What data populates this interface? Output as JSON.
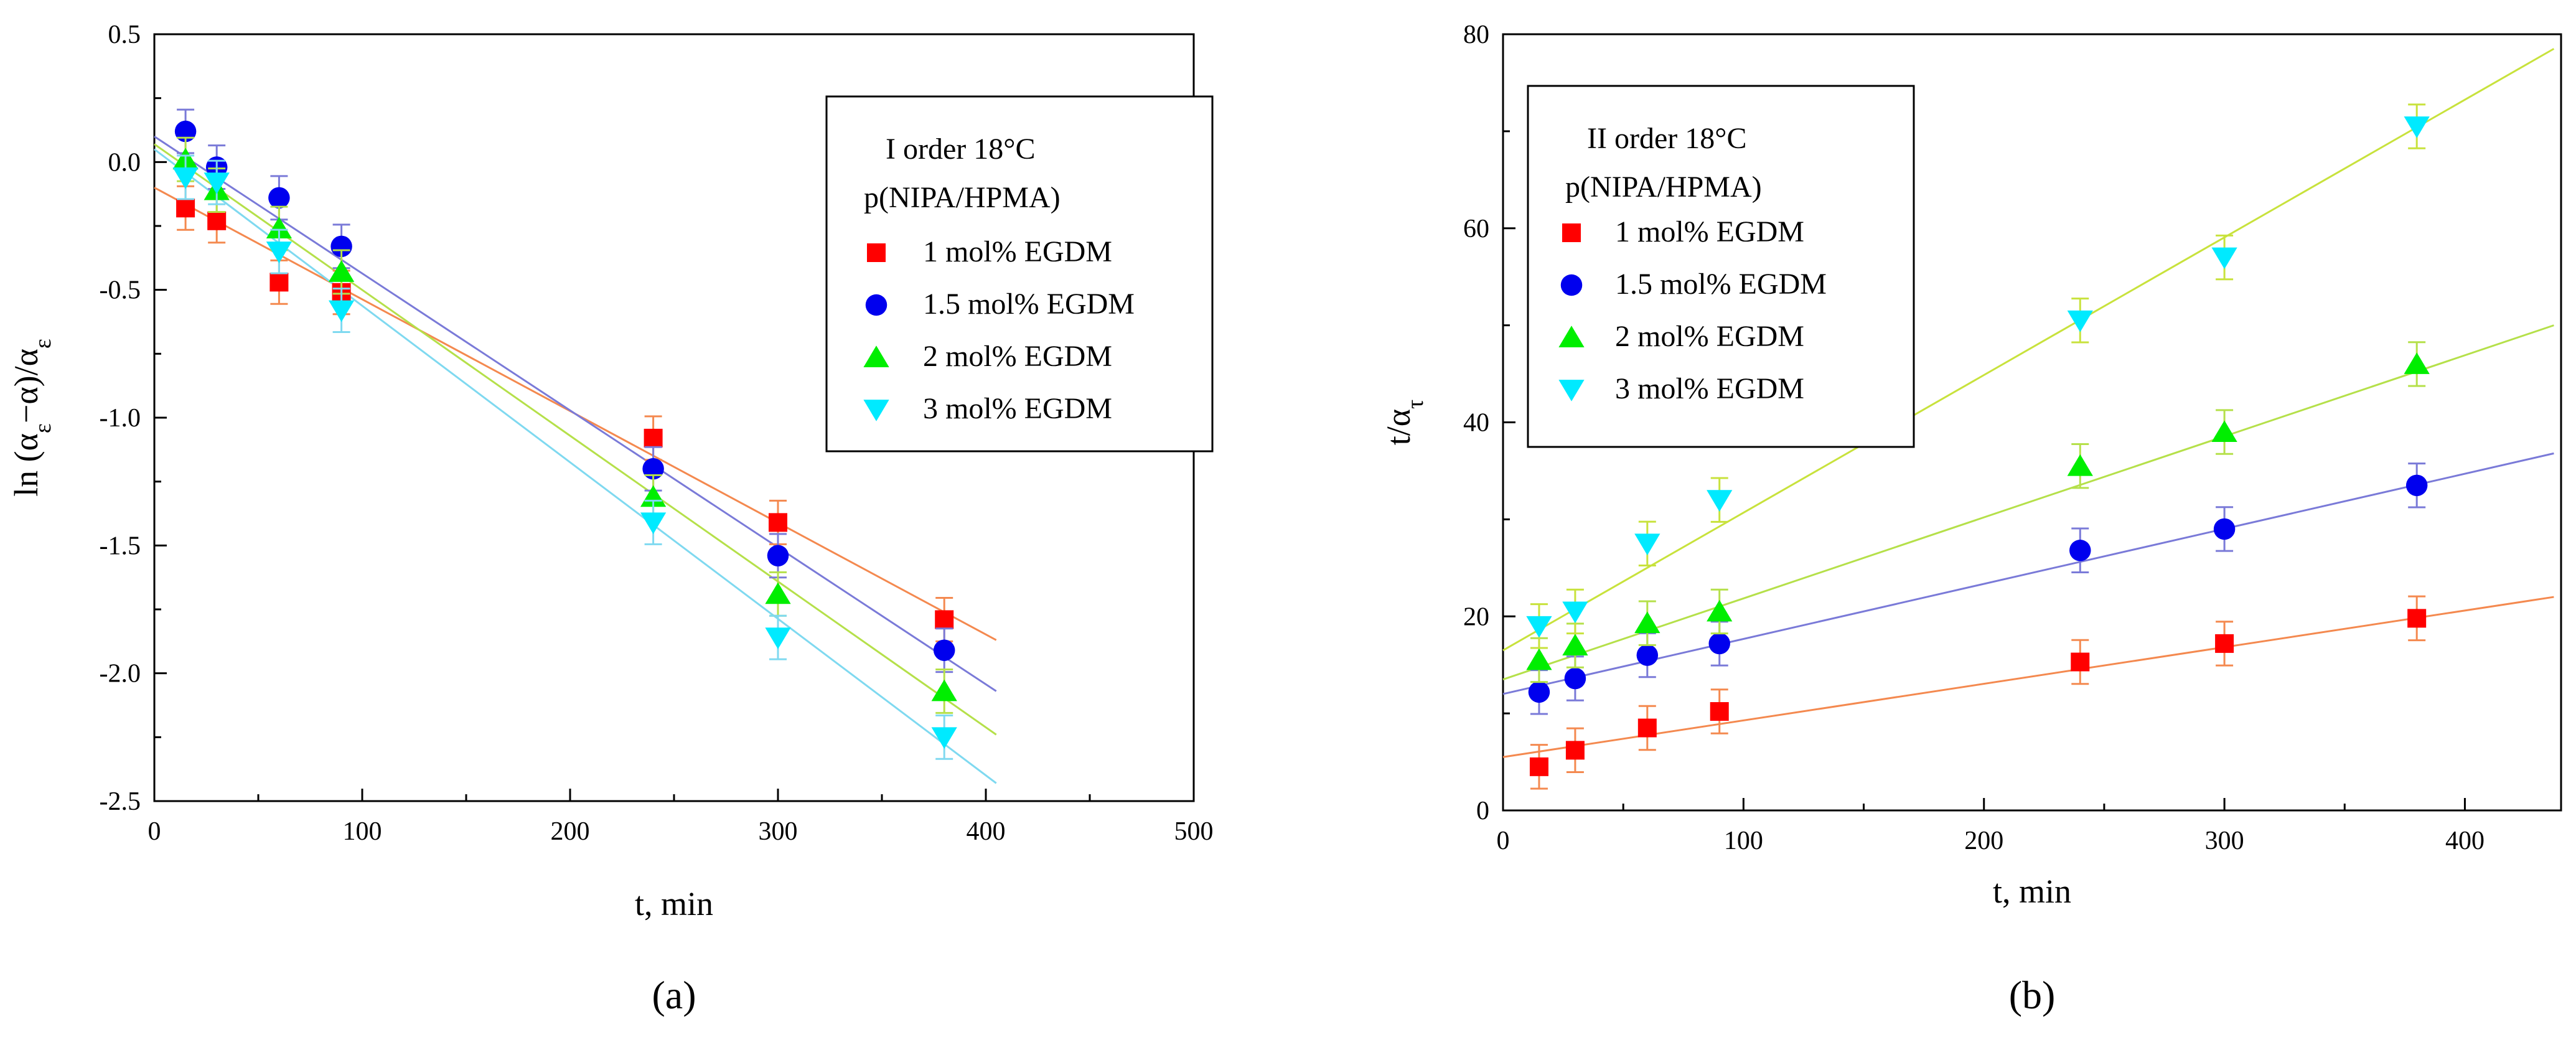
{
  "chart_data": [
    {
      "type": "scatter",
      "panel_label": "(a)",
      "xlabel": "t, min",
      "ylabel": "ln (α_ε−α)/α_ε",
      "xlim": [
        0,
        500
      ],
      "ylim": [
        -2.5,
        0.5
      ],
      "xticks": [
        0,
        100,
        200,
        300,
        400,
        500
      ],
      "yticks": [
        -2.5,
        -2.0,
        -1.5,
        -1.0,
        -0.5,
        0.0,
        0.5
      ],
      "xtick_labels": [
        "0",
        "100",
        "200",
        "300",
        "400",
        "500"
      ],
      "ytick_labels": [
        "-2.5",
        "-2.0",
        "-1.5",
        "-1.0",
        "-0.5",
        "0.0",
        "0.5"
      ],
      "grid": false,
      "legend_position": "top-right",
      "legend_title": [
        "I order 18°C",
        "p(NIPA/HPMA)"
      ],
      "series": [
        {
          "name": "1 mol% EGDM",
          "marker": "square",
          "color": "#ff0000",
          "line_color": "#f4894f",
          "x": [
            15,
            30,
            60,
            90,
            240,
            300,
            380
          ],
          "y": [
            -0.18,
            -0.23,
            -0.47,
            -0.51,
            -1.08,
            -1.41,
            -1.79
          ],
          "fit": {
            "x": [
              0,
              405
            ],
            "y": [
              -0.1,
              -1.87
            ]
          }
        },
        {
          "name": "1.5 mol% EGDM",
          "marker": "circle",
          "color": "#0000ee",
          "line_color": "#7a7ad8",
          "x": [
            15,
            30,
            60,
            90,
            240,
            300,
            380
          ],
          "y": [
            0.12,
            -0.02,
            -0.14,
            -0.33,
            -1.2,
            -1.54,
            -1.91
          ],
          "fit": {
            "x": [
              0,
              405
            ],
            "y": [
              0.1,
              -2.07
            ]
          }
        },
        {
          "name": "2 mol% EGDM",
          "marker": "triangle-up",
          "color": "#00ee00",
          "line_color": "#b5e04a",
          "x": [
            15,
            30,
            60,
            90,
            240,
            300,
            380
          ],
          "y": [
            0.01,
            -0.11,
            -0.26,
            -0.43,
            -1.31,
            -1.69,
            -2.07
          ],
          "fit": {
            "x": [
              0,
              405
            ],
            "y": [
              0.07,
              -2.24
            ]
          }
        },
        {
          "name": "3 mol% EGDM",
          "marker": "triangle-down",
          "color": "#00eaff",
          "line_color": "#7fd9f0",
          "x": [
            15,
            30,
            60,
            90,
            240,
            300,
            380
          ],
          "y": [
            -0.06,
            -0.08,
            -0.35,
            -0.58,
            -1.41,
            -1.86,
            -2.25
          ],
          "fit": {
            "x": [
              0,
              405
            ],
            "y": [
              0.05,
              -2.43
            ]
          }
        }
      ]
    },
    {
      "type": "scatter",
      "panel_label": "(b)",
      "xlabel": "t, min",
      "ylabel": "t/α_τ",
      "xlim": [
        0,
        440
      ],
      "ylim": [
        0,
        80
      ],
      "xticks": [
        0,
        100,
        200,
        300,
        400
      ],
      "yticks": [
        0,
        20,
        40,
        60,
        80
      ],
      "xtick_labels": [
        "0",
        "100",
        "200",
        "300",
        "400"
      ],
      "ytick_labels": [
        "0",
        "20",
        "40",
        "60",
        "80"
      ],
      "grid": false,
      "legend_position": "top-left",
      "legend_title": [
        "II order 18°C",
        "p(NIPA/HPMA)"
      ],
      "series": [
        {
          "name": "1 mol% EGDM",
          "marker": "square",
          "color": "#ff0000",
          "line_color": "#f4894f",
          "x": [
            15,
            30,
            60,
            90,
            240,
            300,
            380
          ],
          "y": [
            4.5,
            6.2,
            8.5,
            10.2,
            15.3,
            17.2,
            19.8
          ],
          "fit": {
            "x": [
              0,
              437
            ],
            "y": [
              5.5,
              22
            ]
          }
        },
        {
          "name": "1.5 mol% EGDM",
          "marker": "circle",
          "color": "#0000ee",
          "line_color": "#7a7ad8",
          "x": [
            15,
            30,
            60,
            90,
            240,
            300,
            380
          ],
          "y": [
            12.2,
            13.6,
            16,
            17.2,
            26.8,
            29,
            33.5
          ],
          "fit": {
            "x": [
              0,
              437
            ],
            "y": [
              12,
              36.8
            ]
          }
        },
        {
          "name": "2 mol% EGDM",
          "marker": "triangle-up",
          "color": "#00ee00",
          "line_color": "#b5e04a",
          "x": [
            15,
            30,
            60,
            90,
            240,
            300,
            380
          ],
          "y": [
            15.5,
            17,
            19.3,
            20.5,
            35.5,
            39,
            46
          ],
          "fit": {
            "x": [
              0,
              437
            ],
            "y": [
              13.5,
              50
            ]
          }
        },
        {
          "name": "3 mol% EGDM",
          "marker": "triangle-down",
          "color": "#00eaff",
          "line_color": "#c8e23c",
          "x": [
            15,
            30,
            60,
            90,
            240,
            300,
            380
          ],
          "y": [
            19,
            20.5,
            27.5,
            32,
            50.5,
            57,
            70.5
          ],
          "fit": {
            "x": [
              0,
              437
            ],
            "y": [
              16.5,
              78.5
            ]
          }
        }
      ]
    }
  ]
}
